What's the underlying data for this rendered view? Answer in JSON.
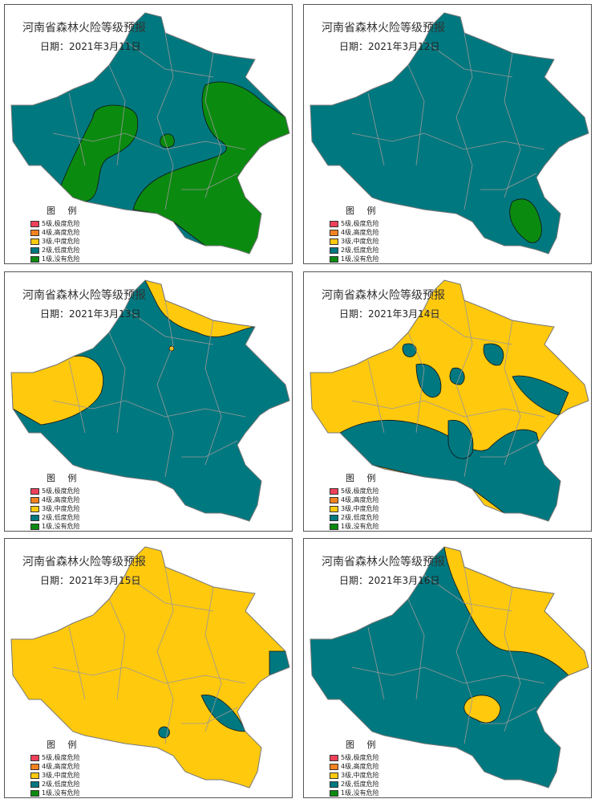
{
  "colors": {
    "level5": "#f0405a",
    "level4": "#f58220",
    "level3": "#ffc90e",
    "level2": "#00787f",
    "level1": "#0b8a10"
  },
  "legend": {
    "title": "图 例",
    "items": [
      {
        "label": "5级,极度危险",
        "color": "#f0405a"
      },
      {
        "label": "4级,高度危险",
        "color": "#f58220"
      },
      {
        "label": "3级,中度危险",
        "color": "#ffc90e"
      },
      {
        "label": "2级,低度危险",
        "color": "#00787f"
      },
      {
        "label": "1级,没有危险",
        "color": "#0b8a10"
      }
    ]
  },
  "panels": [
    {
      "title": "河南省森林火险等级预报",
      "date": "日期：2021年3月11日",
      "base_level": "level2",
      "overlay_level": "level1"
    },
    {
      "title": "河南省森林火险等级预报",
      "date": "日期：2021年3月12日",
      "base_level": "level2",
      "overlay_level": "level1"
    },
    {
      "title": "河南省森林火险等级预报",
      "date": "日期：2021年3月13日",
      "base_level": "level2",
      "overlay_level": "level3"
    },
    {
      "title": "河南省森林火险等级预报",
      "date": "日期：2021年3月14日",
      "base_level": "level3",
      "overlay_level": "level2"
    },
    {
      "title": "河南省森林火险等级预报",
      "date": "日期：2021年3月15日",
      "base_level": "level3",
      "overlay_level": "level2"
    },
    {
      "title": "河南省森林火险等级预报",
      "date": "日期：2021年3月16日",
      "base_level": "level2",
      "overlay_level": "level3"
    }
  ]
}
